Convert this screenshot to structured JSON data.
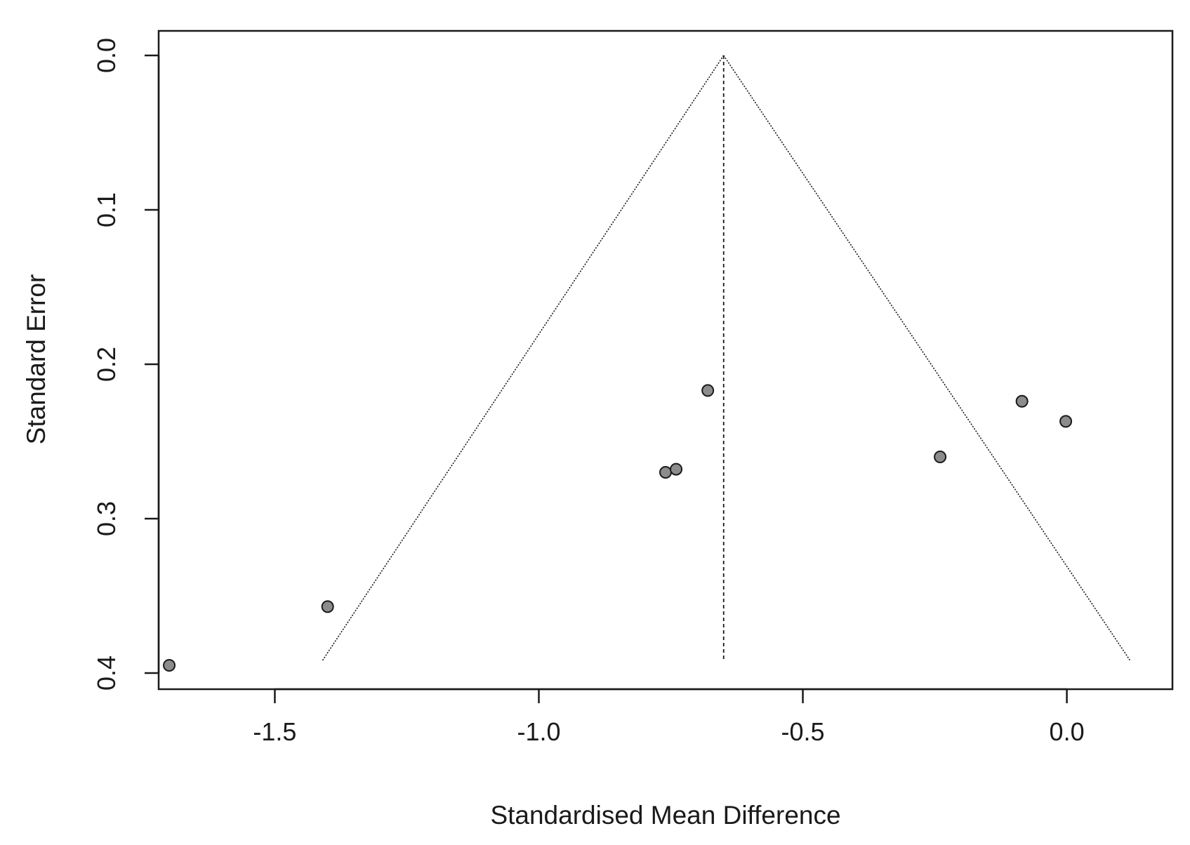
{
  "chart_data": {
    "type": "scatter",
    "title": "",
    "xlabel": "Standardised Mean Difference",
    "ylabel": "Standard Error",
    "xlim": [
      -1.72,
      0.2
    ],
    "ylim": [
      0.0,
      0.4
    ],
    "y_axis_reversed": true,
    "x_ticks": [
      -1.5,
      -1.0,
      -0.5,
      0.0
    ],
    "x_tick_labels": [
      "-1.5",
      "-1.0",
      "-0.5",
      "0.0"
    ],
    "y_ticks": [
      0.0,
      0.1,
      0.2,
      0.3,
      0.4
    ],
    "y_tick_labels": [
      "0.0",
      "0.1",
      "0.2",
      "0.3",
      "0.4"
    ],
    "grid": false,
    "legend": "none",
    "pooled_estimate": -0.65,
    "funnel_apex": {
      "x": -0.65,
      "y": 0.0
    },
    "funnel_base": {
      "left_x": -1.41,
      "right_x": 0.12,
      "y": 0.392
    },
    "points": [
      {
        "x": -1.7,
        "y": 0.395
      },
      {
        "x": -1.4,
        "y": 0.357
      },
      {
        "x": -0.76,
        "y": 0.27
      },
      {
        "x": -0.74,
        "y": 0.268
      },
      {
        "x": -0.68,
        "y": 0.217
      },
      {
        "x": -0.24,
        "y": 0.26
      },
      {
        "x": -0.085,
        "y": 0.224
      },
      {
        "x": -0.002,
        "y": 0.237
      }
    ],
    "colors": {
      "point_fill": "#8c8c8c",
      "point_stroke": "#1a1a1a",
      "line": "#1a1a1a"
    }
  }
}
